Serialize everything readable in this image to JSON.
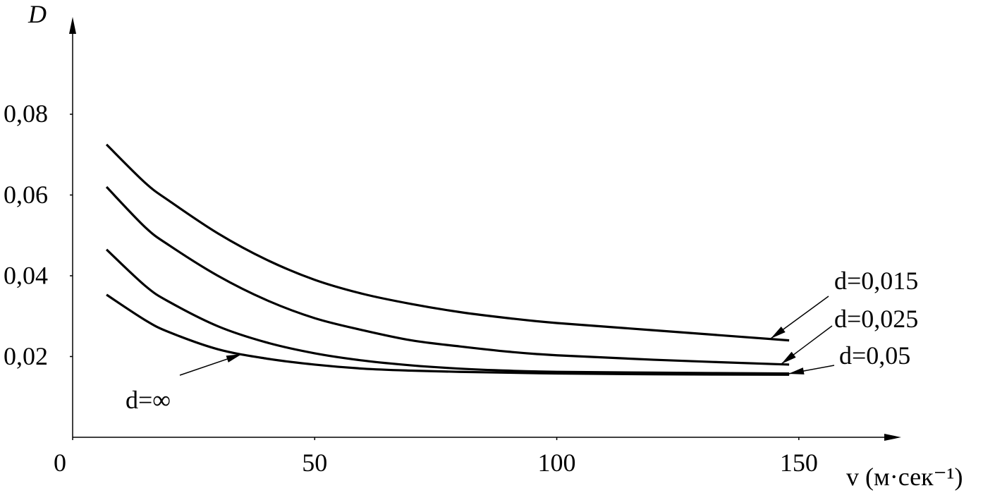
{
  "chart_data": {
    "type": "line",
    "y_label": "D",
    "x_label": "v (м·сек⁻¹)",
    "x": [
      7,
      15,
      20,
      30,
      40,
      50,
      60,
      70,
      80,
      90,
      100,
      120,
      148
    ],
    "series": [
      {
        "name": "d=0,015",
        "color": "#000000",
        "values": [
          0.0725,
          0.063,
          0.0585,
          0.0505,
          0.044,
          0.039,
          0.0355,
          0.033,
          0.031,
          0.0295,
          0.0283,
          0.0265,
          0.024
        ]
      },
      {
        "name": "d=0,025",
        "color": "#000000",
        "values": [
          0.062,
          0.052,
          0.0475,
          0.04,
          0.034,
          0.0295,
          0.0265,
          0.024,
          0.0225,
          0.0212,
          0.0203,
          0.0192,
          0.018
        ]
      },
      {
        "name": "d=0,05",
        "color": "#000000",
        "values": [
          0.0465,
          0.0375,
          0.0335,
          0.0275,
          0.0235,
          0.0208,
          0.019,
          0.0178,
          0.017,
          0.0165,
          0.0162,
          0.016,
          0.0158
        ]
      },
      {
        "name": "d=∞",
        "color": "#000000",
        "values": [
          0.0353,
          0.029,
          0.026,
          0.0218,
          0.0195,
          0.018,
          0.017,
          0.0165,
          0.0162,
          0.016,
          0.0158,
          0.0156,
          0.0155
        ]
      }
    ],
    "xlim": [
      0,
      171
    ],
    "ylim": [
      0,
      0.103
    ],
    "xticks": [
      0,
      50,
      100,
      150
    ],
    "yticks": [
      {
        "value": 0.02,
        "label": "0,02"
      },
      {
        "value": 0.04,
        "label": "0,04"
      },
      {
        "value": 0.06,
        "label": "0,06"
      },
      {
        "value": 0.08,
        "label": "0,08"
      }
    ],
    "grid": false
  }
}
